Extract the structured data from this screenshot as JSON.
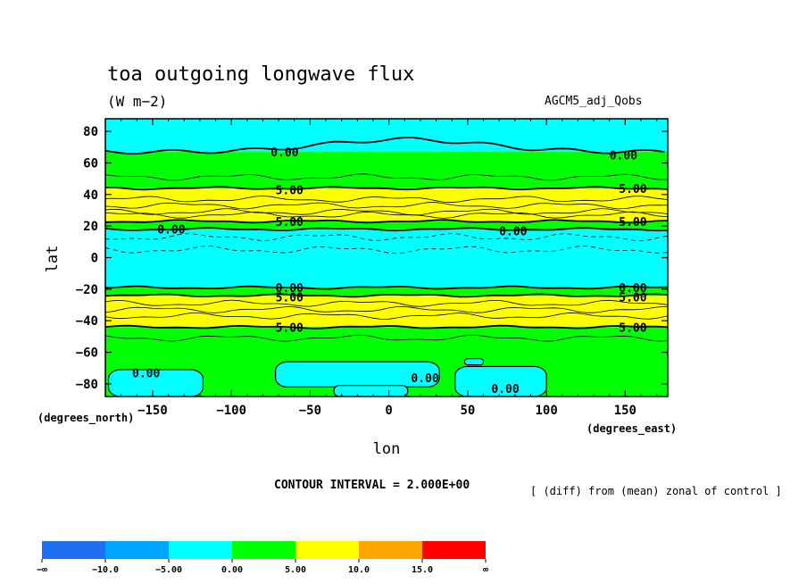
{
  "header": {
    "title": "toa outgoing longwave flux",
    "units": "(W m−2)",
    "dataset": "AGCM5_adj_Qobs"
  },
  "footer": {
    "contour_interval": "CONTOUR INTERVAL = 2.000E+00",
    "operation": "[ (diff) from (mean) zonal of control ]"
  },
  "colors": {
    "neg_inf_to_neg10": "#1e6ff0",
    "neg10_to_neg5": "#00a5ff",
    "neg5_to_0": "#00ffff",
    "zero_to_5": "#00ff00",
    "five_to_10": "#ffff00",
    "ten_to_15": "#ffa500",
    "fifteen_to_inf": "#ff0000"
  },
  "chart_data": {
    "type": "heatmap",
    "subtype": "filled contour map",
    "title": "toa outgoing longwave flux",
    "units": "(W m−2)",
    "xlabel": "lon",
    "ylabel": "lat",
    "x_unit_label": "(degrees_east)",
    "y_unit_label": "(degrees_north)",
    "xlim": [
      -180,
      177
    ],
    "ylim": [
      -88,
      88
    ],
    "x_ticks": [
      -150,
      -100,
      -50,
      0,
      50,
      100,
      150
    ],
    "x_tick_labels": [
      "−150",
      "−100",
      "−50",
      "0",
      "50",
      "100",
      "150"
    ],
    "y_ticks": [
      80,
      60,
      40,
      20,
      0,
      -20,
      -40,
      -60,
      -80
    ],
    "y_tick_labels": [
      "80",
      "60",
      "40",
      "20",
      "0",
      "−20",
      "−40",
      "−60",
      "−80"
    ],
    "contour_interval": 2.0,
    "bands": [
      {
        "lat_from": 88,
        "lat_to": 67,
        "category": "-5 to 0"
      },
      {
        "lat_from": 67,
        "lat_to": 44,
        "category": "0 to 5"
      },
      {
        "lat_from": 44,
        "lat_to": 23,
        "category": "5 to 10"
      },
      {
        "lat_from": 23,
        "lat_to": 18,
        "category": "0 to 5"
      },
      {
        "lat_from": 18,
        "lat_to": -19,
        "category": "-5 to 0"
      },
      {
        "lat_from": -19,
        "lat_to": -24,
        "category": "0 to 5"
      },
      {
        "lat_from": -24,
        "lat_to": -44,
        "category": "5 to 10"
      },
      {
        "lat_from": -44,
        "lat_to": -88,
        "category": "0 to 5"
      }
    ],
    "negative_patches": [
      {
        "lon_from": -178,
        "lon_to": -118,
        "lat_from": -71,
        "lat_to": -88
      },
      {
        "lon_from": -72,
        "lon_to": 32,
        "lat_from": -66,
        "lat_to": -82
      },
      {
        "lon_from": -35,
        "lon_to": 12,
        "lat_from": -81,
        "lat_to": -88
      },
      {
        "lon_from": 42,
        "lon_to": 100,
        "lat_from": -69,
        "lat_to": -88
      },
      {
        "lon_from": 48,
        "lon_to": 60,
        "lat_from": -64,
        "lat_to": -68
      }
    ],
    "contour_labels": [
      {
        "text": "0.00",
        "lon": -75,
        "lat": 67
      },
      {
        "text": "0.00",
        "lon": 140,
        "lat": 65
      },
      {
        "text": "5.00",
        "lon": -72,
        "lat": 43
      },
      {
        "text": "5.00",
        "lon": 146,
        "lat": 44
      },
      {
        "text": "5.00",
        "lon": -72,
        "lat": 23
      },
      {
        "text": "5.00",
        "lon": 146,
        "lat": 23
      },
      {
        "text": "0.00",
        "lon": -147,
        "lat": 18
      },
      {
        "text": "0.00",
        "lon": 70,
        "lat": 17
      },
      {
        "text": "0.00",
        "lon": -72,
        "lat": -19
      },
      {
        "text": "5.00",
        "lon": -72,
        "lat": -25
      },
      {
        "text": "0.00",
        "lon": 146,
        "lat": -19
      },
      {
        "text": "5.00",
        "lon": 146,
        "lat": -25
      },
      {
        "text": "5.00",
        "lon": -72,
        "lat": -44
      },
      {
        "text": "5.00",
        "lon": 146,
        "lat": -44
      },
      {
        "text": "0.00",
        "lon": -163,
        "lat": -73
      },
      {
        "text": "0.00",
        "lon": 14,
        "lat": -76
      },
      {
        "text": "0.00",
        "lon": 65,
        "lat": -83
      }
    ],
    "thin_contours_lat": [
      51,
      37,
      33,
      29,
      27,
      -29,
      -33,
      -37,
      -51
    ],
    "dashed_contours_lat": [
      13,
      5
    ],
    "colorbar": {
      "labels": [
        "−∞",
        "−10.0",
        "−5.00",
        "0.00",
        "5.00",
        "10.0",
        "15.0",
        "∞"
      ],
      "colors": [
        "#1e6ff0",
        "#00a5ff",
        "#00ffff",
        "#00ff00",
        "#ffff00",
        "#ffa500",
        "#ff0000"
      ]
    }
  }
}
